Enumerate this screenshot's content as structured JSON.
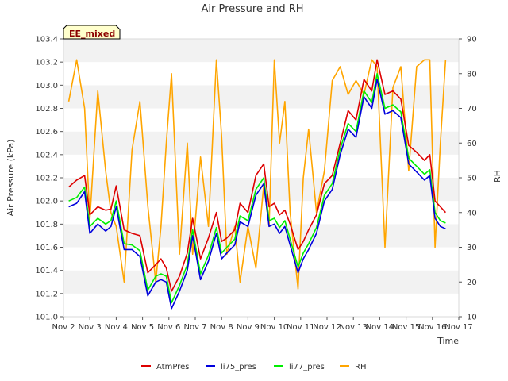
{
  "chart_data": {
    "type": "line",
    "title": "Air Pressure and RH",
    "badge": "EE_mixed",
    "xlabel": "Time",
    "ylabel": "Air Pressure (kPa)",
    "y2label": "RH",
    "xlim": [
      2,
      17
    ],
    "ylim": [
      101.0,
      103.4
    ],
    "y2lim": [
      10,
      90
    ],
    "grid": "horizontal bands",
    "legend_position": "bottom",
    "x_ticks": [
      {
        "value": 2,
        "label": "Nov 2"
      },
      {
        "value": 3,
        "label": "Nov 3"
      },
      {
        "value": 4,
        "label": "Nov 4"
      },
      {
        "value": 5,
        "label": "Nov 5"
      },
      {
        "value": 6,
        "label": "Nov 6"
      },
      {
        "value": 7,
        "label": "Nov 7"
      },
      {
        "value": 8,
        "label": "Nov 8"
      },
      {
        "value": 9,
        "label": "Nov 9"
      },
      {
        "value": 10,
        "label": "Nov 10"
      },
      {
        "value": 11,
        "label": "Nov 11"
      },
      {
        "value": 12,
        "label": "Nov 12"
      },
      {
        "value": 13,
        "label": "Nov 13"
      },
      {
        "value": 14,
        "label": "Nov 14"
      },
      {
        "value": 15,
        "label": "Nov 15"
      },
      {
        "value": 16,
        "label": "Nov 16"
      },
      {
        "value": 17,
        "label": "Nov 17"
      }
    ],
    "y_ticks": [
      "101.0",
      "101.2",
      "101.4",
      "101.6",
      "101.8",
      "102.0",
      "102.2",
      "102.4",
      "102.6",
      "102.8",
      "103.0",
      "103.2",
      "103.4"
    ],
    "y2_ticks": [
      "10",
      "20",
      "30",
      "40",
      "50",
      "60",
      "70",
      "80",
      "90"
    ],
    "x": [
      2.2,
      2.5,
      2.8,
      3.0,
      3.3,
      3.6,
      3.8,
      4.0,
      4.3,
      4.6,
      4.9,
      5.2,
      5.5,
      5.7,
      5.9,
      6.1,
      6.4,
      6.7,
      6.9,
      7.2,
      7.5,
      7.8,
      8.0,
      8.2,
      8.5,
      8.7,
      9.0,
      9.3,
      9.6,
      9.8,
      10.0,
      10.2,
      10.4,
      10.6,
      10.9,
      11.1,
      11.3,
      11.6,
      11.9,
      12.2,
      12.5,
      12.8,
      13.1,
      13.4,
      13.7,
      13.9,
      14.2,
      14.5,
      14.8,
      15.1,
      15.4,
      15.7,
      15.9,
      16.1,
      16.3,
      16.5
    ],
    "series": [
      {
        "name": "AtmPres",
        "color": "#dd0000",
        "values": [
          102.12,
          102.18,
          102.22,
          101.88,
          101.95,
          101.92,
          101.93,
          102.13,
          101.75,
          101.72,
          101.7,
          101.38,
          101.45,
          101.5,
          101.42,
          101.22,
          101.35,
          101.55,
          101.85,
          101.5,
          101.68,
          101.9,
          101.65,
          101.68,
          101.75,
          101.98,
          101.9,
          102.22,
          102.32,
          101.95,
          101.98,
          101.88,
          101.92,
          101.8,
          101.58,
          101.65,
          101.75,
          101.88,
          102.15,
          102.22,
          102.5,
          102.78,
          102.7,
          103.05,
          102.95,
          103.22,
          102.92,
          102.95,
          102.88,
          102.48,
          102.42,
          102.35,
          102.4,
          102.0,
          101.95,
          101.9
        ]
      },
      {
        "name": "li75_pres",
        "color": "#0000dd",
        "values": [
          101.95,
          101.98,
          102.08,
          101.72,
          101.8,
          101.74,
          101.78,
          101.95,
          101.58,
          101.58,
          101.52,
          101.18,
          101.3,
          101.32,
          101.3,
          101.07,
          101.22,
          101.4,
          101.7,
          101.32,
          101.48,
          101.72,
          101.5,
          101.55,
          101.62,
          101.82,
          101.78,
          102.05,
          102.15,
          101.78,
          101.8,
          101.72,
          101.78,
          101.62,
          101.38,
          101.5,
          101.58,
          101.72,
          102.0,
          102.1,
          102.4,
          102.62,
          102.55,
          102.9,
          102.8,
          103.05,
          102.75,
          102.78,
          102.72,
          102.32,
          102.25,
          102.18,
          102.22,
          101.85,
          101.78,
          101.76
        ]
      },
      {
        "name": "li77_pres",
        "color": "#00ee00",
        "values": [
          102.0,
          102.03,
          102.12,
          101.78,
          101.85,
          101.8,
          101.83,
          102.0,
          101.63,
          101.62,
          101.57,
          101.23,
          101.35,
          101.37,
          101.35,
          101.12,
          101.27,
          101.45,
          101.75,
          101.37,
          101.53,
          101.77,
          101.55,
          101.6,
          101.67,
          101.87,
          101.83,
          102.1,
          102.2,
          101.83,
          101.85,
          101.77,
          101.83,
          101.67,
          101.43,
          101.55,
          101.63,
          101.77,
          102.05,
          102.15,
          102.45,
          102.67,
          102.6,
          102.95,
          102.85,
          103.1,
          102.8,
          102.83,
          102.77,
          102.37,
          102.3,
          102.23,
          102.27,
          101.9,
          101.83,
          101.81
        ]
      },
      {
        "name": "RH",
        "color": "#ffa500",
        "values": [
          72,
          84,
          70,
          38,
          75,
          52,
          40,
          36,
          20,
          58,
          72,
          42,
          20,
          36,
          60,
          80,
          28,
          60,
          28,
          56,
          36,
          84,
          62,
          28,
          36,
          20,
          36,
          24,
          48,
          36,
          84,
          60,
          72,
          40,
          18,
          50,
          64,
          40,
          52,
          78,
          82,
          74,
          78,
          74,
          84,
          82,
          30,
          76,
          82,
          52,
          82,
          84,
          84,
          30,
          60,
          84
        ]
      }
    ]
  }
}
